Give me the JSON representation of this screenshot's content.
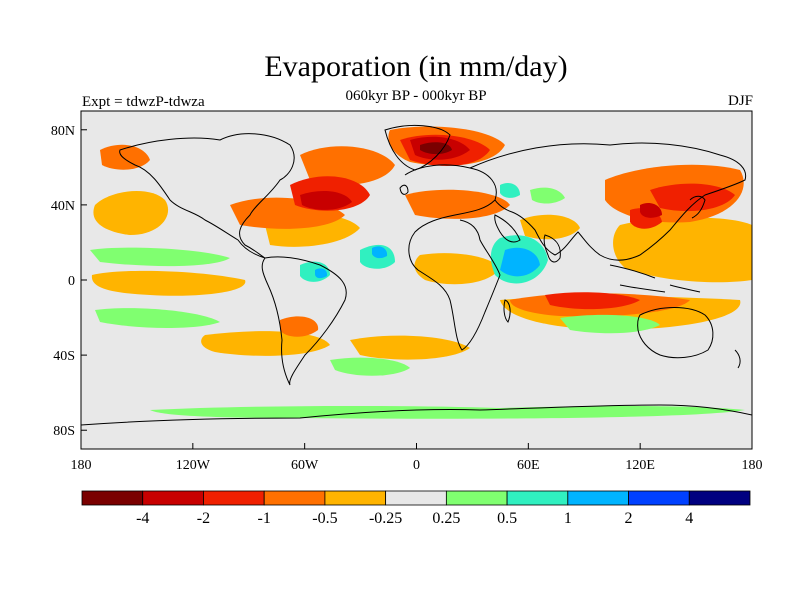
{
  "title": "Evaporation (in mm/day)",
  "subtitle": "060kyr BP - 000kyr BP",
  "left_label": "Expt = tdwzP-tdwza",
  "right_label": "DJF",
  "lat_labels": [
    "80N",
    "40N",
    "0",
    "40S",
    "80S"
  ],
  "lat_values": [
    80,
    40,
    0,
    -40,
    -80
  ],
  "lon_labels": [
    "180",
    "120W",
    "60W",
    "0",
    "60E",
    "120E",
    "180"
  ],
  "lon_values": [
    -180,
    -120,
    -60,
    0,
    60,
    120,
    180
  ],
  "colorbar": {
    "labels": [
      "-4",
      "-2",
      "-1",
      "-0.5",
      "-0.25",
      "0.25",
      "0.5",
      "1",
      "2",
      "4"
    ],
    "colors": [
      "#7a0000",
      "#c80000",
      "#f02000",
      "#ff7000",
      "#ffb400",
      "#e8e8e8",
      "#80ff70",
      "#30f0c0",
      "#00b4ff",
      "#0040ff",
      "#000080"
    ]
  },
  "colors": {
    "neutral": "#e8e8e8",
    "coast": "#000000"
  }
}
